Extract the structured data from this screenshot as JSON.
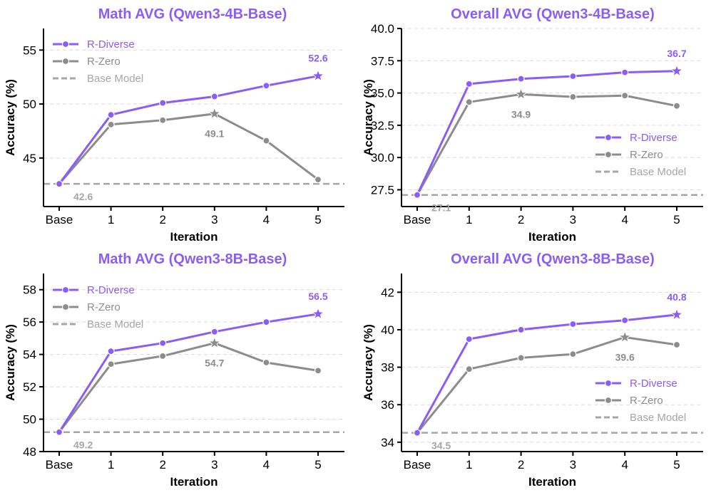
{
  "colors": {
    "r_diverse": "#8b5cf6",
    "r_zero": "#8c8c8c",
    "base": "#a6a6a6"
  },
  "legend": {
    "r_diverse": "R-Diverse",
    "r_zero": "R-Zero",
    "base": "Base Model"
  },
  "chart_data": [
    {
      "type": "line",
      "title": "Math AVG (Qwen3-4B-Base)",
      "xlabel": "Iteration",
      "ylabel": "Accuracy (%)",
      "categories": [
        "Base",
        "1",
        "2",
        "3",
        "4",
        "5"
      ],
      "ylim": [
        40.5,
        57.0
      ],
      "yticks": [
        45,
        50,
        55
      ],
      "ytick_labels": [
        "45",
        "50",
        "55"
      ],
      "legend_position": "top-left",
      "series": [
        {
          "name": "R-Diverse",
          "values": [
            42.6,
            49.0,
            50.1,
            50.7,
            51.7,
            52.6
          ],
          "star_index": 5,
          "label": "52.6"
        },
        {
          "name": "R-Zero",
          "values": [
            42.6,
            48.1,
            48.5,
            49.1,
            46.6,
            43.0
          ],
          "star_index": 3,
          "label": "49.1"
        }
      ],
      "baseline": {
        "name": "Base Model",
        "value": 42.6,
        "label": "42.6"
      }
    },
    {
      "type": "line",
      "title": "Overall AVG (Qwen3-4B-Base)",
      "xlabel": "Iteration",
      "ylabel": "Accuracy (%)",
      "categories": [
        "Base",
        "1",
        "2",
        "3",
        "4",
        "5"
      ],
      "ylim": [
        26.2,
        40.0
      ],
      "yticks": [
        27.5,
        30.0,
        32.5,
        35.0,
        37.5,
        40.0
      ],
      "ytick_labels": [
        "27.5",
        "30.0",
        "32.5",
        "35.0",
        "37.5",
        "40.0"
      ],
      "legend_position": "lower-right",
      "series": [
        {
          "name": "R-Diverse",
          "values": [
            27.1,
            35.7,
            36.1,
            36.3,
            36.6,
            36.7
          ],
          "star_index": 5,
          "label": "36.7"
        },
        {
          "name": "R-Zero",
          "values": [
            27.1,
            34.3,
            34.9,
            34.7,
            34.8,
            34.0
          ],
          "star_index": 2,
          "label": "34.9"
        }
      ],
      "baseline": {
        "name": "Base Model",
        "value": 27.1,
        "label": "27.1"
      }
    },
    {
      "type": "line",
      "title": "Math AVG (Qwen3-8B-Base)",
      "xlabel": "Iteration",
      "ylabel": "Accuracy (%)",
      "categories": [
        "Base",
        "1",
        "2",
        "3",
        "4",
        "5"
      ],
      "ylim": [
        48.0,
        59.0
      ],
      "yticks": [
        48,
        50,
        52,
        54,
        56,
        58
      ],
      "ytick_labels": [
        "48",
        "50",
        "52",
        "54",
        "56",
        "58"
      ],
      "legend_position": "top-left",
      "series": [
        {
          "name": "R-Diverse",
          "values": [
            49.2,
            54.2,
            54.7,
            55.4,
            56.0,
            56.5
          ],
          "star_index": 5,
          "label": "56.5"
        },
        {
          "name": "R-Zero",
          "values": [
            49.2,
            53.4,
            53.9,
            54.7,
            53.5,
            53.0
          ],
          "star_index": 3,
          "label": "54.7"
        }
      ],
      "baseline": {
        "name": "Base Model",
        "value": 49.2,
        "label": "49.2"
      }
    },
    {
      "type": "line",
      "title": "Overall AVG (Qwen3-8B-Base)",
      "xlabel": "Iteration",
      "ylabel": "Accuracy (%)",
      "categories": [
        "Base",
        "1",
        "2",
        "3",
        "4",
        "5"
      ],
      "ylim": [
        33.5,
        43.0
      ],
      "yticks": [
        34,
        36,
        38,
        40,
        42
      ],
      "ytick_labels": [
        "34",
        "36",
        "38",
        "40",
        "42"
      ],
      "legend_position": "lower-right",
      "series": [
        {
          "name": "R-Diverse",
          "values": [
            34.5,
            39.5,
            40.0,
            40.3,
            40.5,
            40.8
          ],
          "star_index": 5,
          "label": "40.8"
        },
        {
          "name": "R-Zero",
          "values": [
            34.5,
            37.9,
            38.5,
            38.7,
            39.6,
            39.2
          ],
          "star_index": 4,
          "label": "39.6"
        }
      ],
      "baseline": {
        "name": "Base Model",
        "value": 34.5,
        "label": "34.5"
      }
    }
  ]
}
